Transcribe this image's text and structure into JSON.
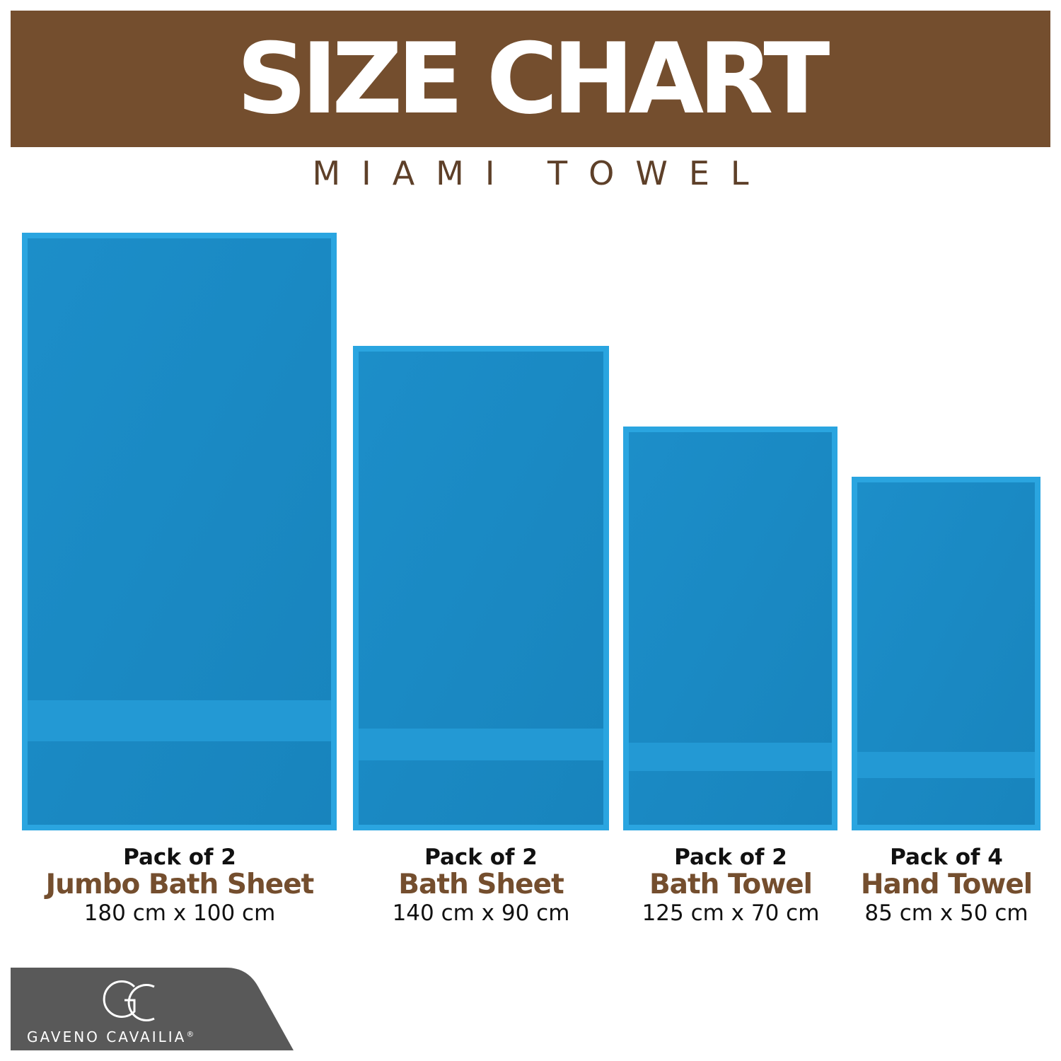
{
  "header": {
    "title": "SIZE CHART",
    "subtitle": "MIAMI TOWEL"
  },
  "items": [
    {
      "pack": "Pack of 2",
      "name": "Jumbo Bath Sheet",
      "size": "180 cm x 100 cm"
    },
    {
      "pack": "Pack of 2",
      "name": "Bath Sheet",
      "size": "140 cm x 90 cm"
    },
    {
      "pack": "Pack of 2",
      "name": "Bath Towel",
      "size": "125 cm x 70 cm"
    },
    {
      "pack": "Pack of 4",
      "name": "Hand Towel",
      "size": "85 cm x 50 cm"
    }
  ],
  "brand": {
    "name": "GAVENO CAVAILIA",
    "mark": "®"
  }
}
